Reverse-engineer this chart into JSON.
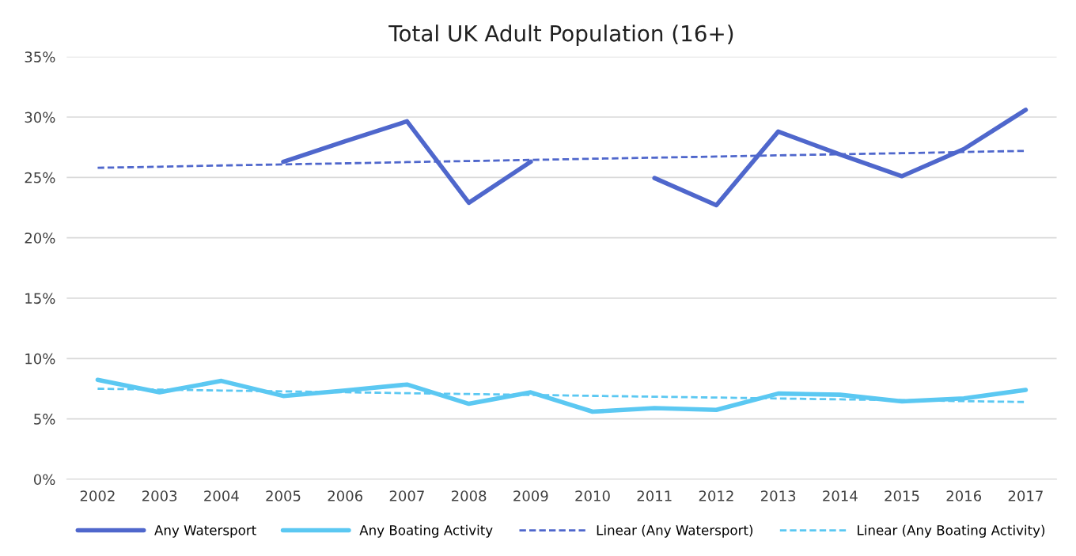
{
  "chart_data": {
    "type": "line",
    "title": "Total UK Adult Population (16+)",
    "categories": [
      "2002",
      "2003",
      "2004",
      "2005",
      "2006",
      "2007",
      "2008",
      "2009",
      "2010",
      "2011",
      "2012",
      "2013",
      "2014",
      "2015",
      "2016",
      "2017"
    ],
    "series": [
      {
        "name": "Any Watersport",
        "color": "#4f67cc",
        "line_style": "solid",
        "values": [
          null,
          null,
          null,
          26.3,
          28.0,
          29.65,
          22.9,
          26.3,
          null,
          24.95,
          22.7,
          28.8,
          26.9,
          25.1,
          27.35,
          30.6
        ]
      },
      {
        "name": "Any Boating Activity",
        "color": "#5bc8f2",
        "line_style": "solid",
        "values": [
          8.24,
          7.2,
          8.15,
          6.9,
          7.35,
          7.85,
          6.25,
          7.2,
          5.6,
          5.9,
          5.75,
          7.1,
          7.0,
          6.45,
          6.7,
          7.4
        ]
      },
      {
        "name": "Linear (Any Watersport)",
        "color": "#4f67cc",
        "line_style": "dashed",
        "values": [
          25.8,
          25.89,
          25.99,
          26.08,
          26.17,
          26.27,
          26.36,
          26.45,
          26.55,
          26.64,
          26.73,
          26.83,
          26.92,
          27.01,
          27.11,
          27.2
        ]
      },
      {
        "name": "Linear (Any Boating Activity)",
        "color": "#5bc8f2",
        "line_style": "dashed",
        "values": [
          7.5,
          7.43,
          7.35,
          7.28,
          7.21,
          7.13,
          7.06,
          6.99,
          6.91,
          6.84,
          6.77,
          6.69,
          6.62,
          6.55,
          6.47,
          6.4
        ]
      }
    ],
    "ylim": [
      0,
      35
    ],
    "yticks": [
      {
        "value": 0,
        "label": "0%"
      },
      {
        "value": 5,
        "label": "5%"
      },
      {
        "value": 10,
        "label": "10%"
      },
      {
        "value": 15,
        "label": "15%"
      },
      {
        "value": 20,
        "label": "20%"
      },
      {
        "value": 25,
        "label": "25%"
      },
      {
        "value": 30,
        "label": "30%"
      },
      {
        "value": 35,
        "label": "35%"
      }
    ],
    "grid": "y",
    "legend": "bottom",
    "marker": "none"
  }
}
